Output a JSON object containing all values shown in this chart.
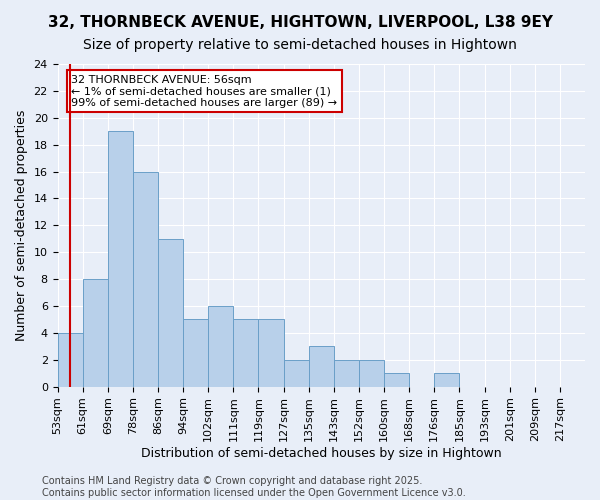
{
  "title": "32, THORNBECK AVENUE, HIGHTOWN, LIVERPOOL, L38 9EY",
  "subtitle": "Size of property relative to semi-detached houses in Hightown",
  "xlabel": "Distribution of semi-detached houses by size in Hightown",
  "ylabel": "Number of semi-detached properties",
  "bin_edges": [
    "53sqm",
    "61sqm",
    "69sqm",
    "78sqm",
    "86sqm",
    "94sqm",
    "102sqm",
    "111sqm",
    "119sqm",
    "127sqm",
    "135sqm",
    "143sqm",
    "152sqm",
    "160sqm",
    "168sqm",
    "176sqm",
    "185sqm",
    "193sqm",
    "201sqm",
    "209sqm",
    "217sqm"
  ],
  "bin_counts": [
    4,
    8,
    19,
    16,
    11,
    5,
    6,
    5,
    5,
    2,
    3,
    2,
    2,
    1,
    0,
    1,
    0,
    0,
    0,
    0
  ],
  "bar_color": "#b8d0ea",
  "bar_edge_color": "#6a9fc8",
  "highlight_line_color": "#cc0000",
  "annotation_text": "32 THORNBECK AVENUE: 56sqm\n← 1% of semi-detached houses are smaller (1)\n99% of semi-detached houses are larger (89) →",
  "annotation_box_color": "#ffffff",
  "annotation_box_edge": "#cc0000",
  "ylim": [
    0,
    24
  ],
  "yticks": [
    0,
    2,
    4,
    6,
    8,
    10,
    12,
    14,
    16,
    18,
    20,
    22,
    24
  ],
  "footer_text": "Contains HM Land Registry data © Crown copyright and database right 2025.\nContains public sector information licensed under the Open Government Licence v3.0.",
  "bg_color": "#e8eef8",
  "grid_color": "#ffffff",
  "title_fontsize": 11,
  "subtitle_fontsize": 10,
  "axis_label_fontsize": 9,
  "tick_fontsize": 8,
  "annotation_fontsize": 8,
  "footer_fontsize": 7
}
